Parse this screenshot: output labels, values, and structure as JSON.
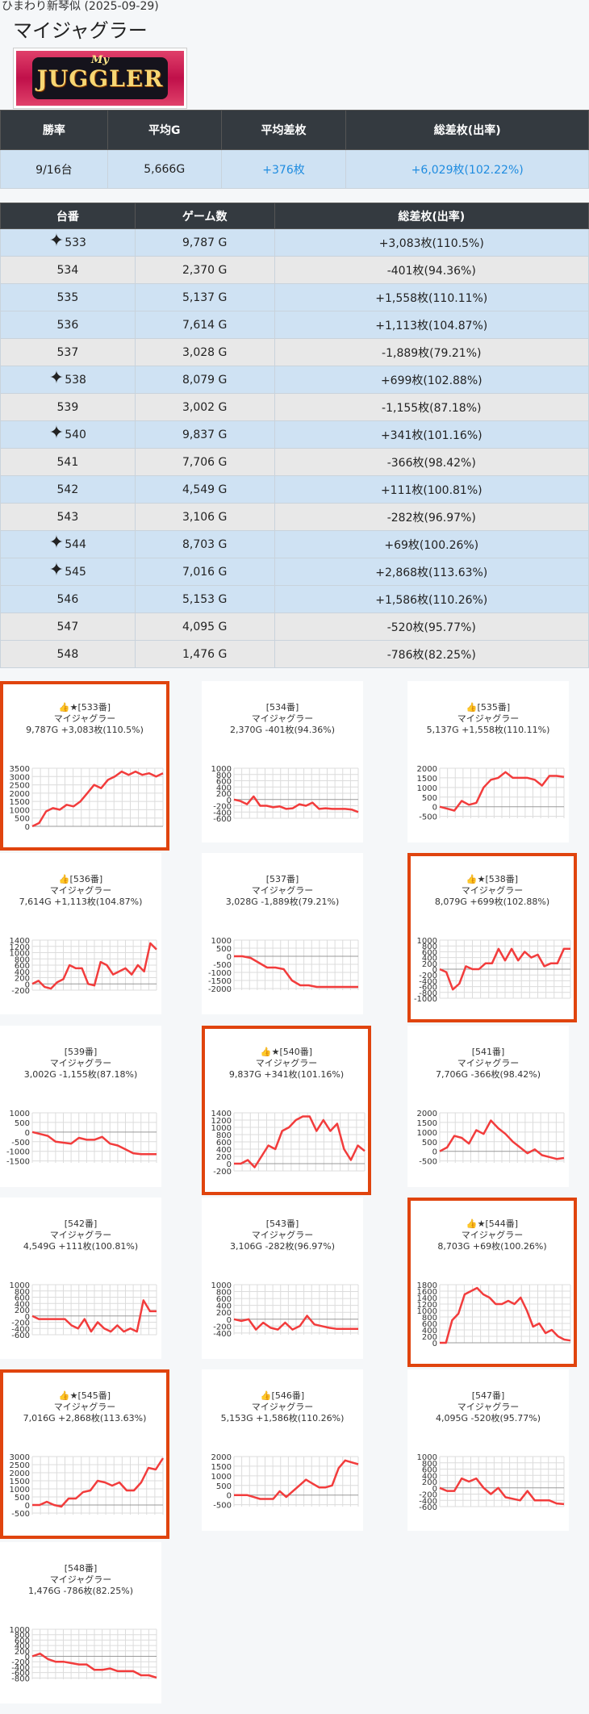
{
  "header": {
    "store_line": "ひまわり新琴似 (2025-09-29)",
    "machine": "マイジャグラー"
  },
  "logo": {
    "my": "My",
    "name": "JUGGLER"
  },
  "summary": {
    "headers": [
      "勝率",
      "平均G",
      "平均差枚",
      "総差枚(出率)"
    ],
    "win_rate": "9/16台",
    "avg_games": "5,666G",
    "avg_diff": "+376枚",
    "total_diff": "+6,029枚(102.22%)"
  },
  "detail": {
    "headers": [
      "台番",
      "ゲーム数",
      "総差枚(出率)"
    ],
    "sparkle_icon": "✦",
    "rows": [
      {
        "no": "533",
        "games": "9,787 G",
        "diff": "+3,083枚(110.5%)",
        "star": true,
        "style": "blue"
      },
      {
        "no": "534",
        "games": "2,370 G",
        "diff": "-401枚(94.36%)",
        "star": false,
        "style": "grey"
      },
      {
        "no": "535",
        "games": "5,137 G",
        "diff": "+1,558枚(110.11%)",
        "star": false,
        "style": "blue"
      },
      {
        "no": "536",
        "games": "7,614 G",
        "diff": "+1,113枚(104.87%)",
        "star": false,
        "style": "blue"
      },
      {
        "no": "537",
        "games": "3,028 G",
        "diff": "-1,889枚(79.21%)",
        "star": false,
        "style": "grey"
      },
      {
        "no": "538",
        "games": "8,079 G",
        "diff": "+699枚(102.88%)",
        "star": true,
        "style": "blue"
      },
      {
        "no": "539",
        "games": "3,002 G",
        "diff": "-1,155枚(87.18%)",
        "star": false,
        "style": "grey"
      },
      {
        "no": "540",
        "games": "9,837 G",
        "diff": "+341枚(101.16%)",
        "star": true,
        "style": "blue"
      },
      {
        "no": "541",
        "games": "7,706 G",
        "diff": "-366枚(98.42%)",
        "star": false,
        "style": "grey"
      },
      {
        "no": "542",
        "games": "4,549 G",
        "diff": "+111枚(100.81%)",
        "star": false,
        "style": "blue"
      },
      {
        "no": "543",
        "games": "3,106 G",
        "diff": "-282枚(96.97%)",
        "star": false,
        "style": "grey"
      },
      {
        "no": "544",
        "games": "8,703 G",
        "diff": "+69枚(100.26%)",
        "star": true,
        "style": "blue"
      },
      {
        "no": "545",
        "games": "7,016 G",
        "diff": "+2,868枚(113.63%)",
        "star": true,
        "style": "blue"
      },
      {
        "no": "546",
        "games": "5,153 G",
        "diff": "+1,586枚(110.26%)",
        "star": false,
        "style": "blue"
      },
      {
        "no": "547",
        "games": "4,095 G",
        "diff": "-520枚(95.77%)",
        "star": false,
        "style": "grey"
      },
      {
        "no": "548",
        "games": "1,476 G",
        "diff": "-786枚(82.25%)",
        "star": false,
        "style": "grey"
      }
    ]
  },
  "chart_data": [
    {
      "type": "line",
      "title": "👍★[533番]",
      "subtitle": "マイジャグラー",
      "caption": "9,787G +3,083枚(110.5%)",
      "highlight": true,
      "yticks": [
        3500,
        3000,
        2500,
        2000,
        1500,
        1000,
        500,
        0
      ],
      "ylim": [
        0,
        3500
      ],
      "values": [
        0,
        200,
        900,
        1100,
        1000,
        1300,
        1200,
        1500,
        2000,
        2500,
        2300,
        2800,
        3000,
        3300,
        3100,
        3300,
        3100,
        3200,
        3000,
        3200
      ]
    },
    {
      "type": "line",
      "title": "[534番]",
      "subtitle": "マイジャグラー",
      "caption": "2,370G -401枚(94.36%)",
      "highlight": false,
      "yticks": [
        1000,
        800,
        600,
        400,
        200,
        0,
        -200,
        -400,
        -600
      ],
      "ylim": [
        -600,
        1000
      ],
      "values": [
        0,
        -50,
        -150,
        100,
        -200,
        -200,
        -250,
        -220,
        -300,
        -280,
        -150,
        -200,
        -100,
        -300,
        -280,
        -300,
        -300,
        -300,
        -320,
        -400
      ]
    },
    {
      "type": "line",
      "title": "👍[535番]",
      "subtitle": "マイジャグラー",
      "caption": "5,137G +1,558枚(110.11%)",
      "highlight": false,
      "yticks": [
        2000,
        1500,
        1000,
        500,
        0,
        -500
      ],
      "ylim": [
        -600,
        2000
      ],
      "values": [
        0,
        -100,
        -200,
        300,
        100,
        200,
        1000,
        1400,
        1500,
        1800,
        1500,
        1500,
        1500,
        1400,
        1100,
        1600,
        1600,
        1550
      ]
    },
    {
      "type": "line",
      "title": "👍[536番]",
      "subtitle": "マイジャグラー",
      "caption": "7,614G +1,113枚(104.87%)",
      "highlight": false,
      "yticks": [
        1400,
        1200,
        1000,
        800,
        600,
        400,
        200,
        0,
        -200
      ],
      "ylim": [
        -200,
        1400
      ],
      "values": [
        0,
        100,
        -100,
        -150,
        50,
        150,
        600,
        500,
        500,
        0,
        -50,
        700,
        600,
        300,
        400,
        500,
        300,
        600,
        400,
        1300,
        1100
      ]
    },
    {
      "type": "line",
      "title": "[537番]",
      "subtitle": "マイジャグラー",
      "caption": "3,028G -1,889枚(79.21%)",
      "highlight": false,
      "yticks": [
        1000,
        500,
        0,
        -500,
        -1000,
        -1500,
        -2000
      ],
      "ylim": [
        -2100,
        1000
      ],
      "values": [
        0,
        0,
        -100,
        -400,
        -700,
        -700,
        -800,
        -1500,
        -1800,
        -1800,
        -1900,
        -1900,
        -1900,
        -1900,
        -1900,
        -1900
      ]
    },
    {
      "type": "line",
      "title": "👍★[538番]",
      "subtitle": "マイジャグラー",
      "caption": "8,079G +699枚(102.88%)",
      "highlight": true,
      "yticks": [
        1000,
        800,
        600,
        400,
        200,
        0,
        -200,
        -400,
        -600,
        -800,
        -1000
      ],
      "ylim": [
        -1000,
        1000
      ],
      "values": [
        0,
        -100,
        -700,
        -500,
        100,
        0,
        0,
        200,
        200,
        700,
        300,
        700,
        300,
        600,
        400,
        500,
        100,
        200,
        200,
        700,
        700
      ]
    },
    {
      "type": "line",
      "title": "[539番]",
      "subtitle": "マイジャグラー",
      "caption": "3,002G -1,155枚(87.18%)",
      "highlight": false,
      "yticks": [
        1000,
        500,
        0,
        -500,
        -1000,
        -1500
      ],
      "ylim": [
        -1600,
        1000
      ],
      "values": [
        0,
        -100,
        -200,
        -500,
        -550,
        -600,
        -300,
        -400,
        -400,
        -250,
        -600,
        -700,
        -900,
        -1100,
        -1150,
        -1150,
        -1150
      ]
    },
    {
      "type": "line",
      "title": "👍★[540番]",
      "subtitle": "マイジャグラー",
      "caption": "9,837G +341枚(101.16%)",
      "highlight": true,
      "yticks": [
        1400,
        1200,
        1000,
        800,
        600,
        400,
        200,
        0,
        -200
      ],
      "ylim": [
        -200,
        1400
      ],
      "values": [
        0,
        0,
        100,
        -100,
        200,
        500,
        400,
        900,
        1000,
        1200,
        1300,
        1300,
        900,
        1200,
        900,
        1100,
        400,
        100,
        500,
        350
      ]
    },
    {
      "type": "line",
      "title": "[541番]",
      "subtitle": "マイジャグラー",
      "caption": "7,706G -366枚(98.42%)",
      "highlight": false,
      "yticks": [
        2000,
        1500,
        1000,
        500,
        0,
        -500
      ],
      "ylim": [
        -600,
        2000
      ],
      "values": [
        0,
        200,
        800,
        700,
        400,
        1100,
        900,
        1600,
        1200,
        900,
        500,
        200,
        -100,
        100,
        -200,
        -300,
        -400,
        -350
      ]
    },
    {
      "type": "line",
      "title": "[542番]",
      "subtitle": "マイジャグラー",
      "caption": "4,549G +111枚(100.81%)",
      "highlight": false,
      "yticks": [
        1000,
        800,
        600,
        400,
        200,
        0,
        -200,
        -400,
        -600
      ],
      "ylim": [
        -600,
        1000
      ],
      "values": [
        0,
        -100,
        -100,
        -100,
        -100,
        -100,
        -300,
        -400,
        -100,
        -500,
        -200,
        -400,
        -500,
        -300,
        -500,
        -400,
        -500,
        500,
        150,
        150
      ]
    },
    {
      "type": "line",
      "title": "[543番]",
      "subtitle": "マイジャグラー",
      "caption": "3,106G -282枚(96.97%)",
      "highlight": false,
      "yticks": [
        1000,
        800,
        600,
        400,
        200,
        0,
        -200,
        -400
      ],
      "ylim": [
        -450,
        1000
      ],
      "values": [
        0,
        -50,
        0,
        -300,
        -100,
        -250,
        -300,
        -100,
        -300,
        -200,
        100,
        -150,
        -200,
        -250,
        -280,
        -280,
        -280,
        -280
      ]
    },
    {
      "type": "line",
      "title": "👍★[544番]",
      "subtitle": "マイジャグラー",
      "caption": "8,703G +69枚(100.26%)",
      "highlight": true,
      "yticks": [
        1800,
        1600,
        1400,
        1200,
        1000,
        800,
        600,
        400,
        200,
        0
      ],
      "ylim": [
        0,
        1800
      ],
      "values": [
        0,
        0,
        700,
        900,
        1500,
        1600,
        1700,
        1500,
        1400,
        1200,
        1200,
        1300,
        1200,
        1400,
        1000,
        500,
        600,
        300,
        400,
        200,
        100,
        69
      ]
    },
    {
      "type": "line",
      "title": "👍★[545番]",
      "subtitle": "マイジャグラー",
      "caption": "7,016G +2,868枚(113.63%)",
      "highlight": true,
      "yticks": [
        3000,
        2500,
        2000,
        1500,
        1000,
        500,
        0,
        -500
      ],
      "ylim": [
        -600,
        3000
      ],
      "values": [
        0,
        0,
        200,
        0,
        -100,
        400,
        400,
        800,
        900,
        1500,
        1400,
        1200,
        1400,
        900,
        900,
        1400,
        2300,
        2200,
        2900
      ]
    },
    {
      "type": "line",
      "title": "👍[546番]",
      "subtitle": "マイジャグラー",
      "caption": "5,153G +1,586枚(110.26%)",
      "highlight": false,
      "yticks": [
        2000,
        1500,
        1000,
        500,
        0,
        -500
      ],
      "ylim": [
        -600,
        2000
      ],
      "values": [
        0,
        0,
        0,
        -100,
        -200,
        -200,
        -200,
        200,
        -100,
        200,
        500,
        800,
        600,
        400,
        400,
        500,
        1400,
        1800,
        1700,
        1600
      ]
    },
    {
      "type": "line",
      "title": "[547番]",
      "subtitle": "マイジャグラー",
      "caption": "4,095G -520枚(95.77%)",
      "highlight": false,
      "yticks": [
        1000,
        800,
        600,
        400,
        200,
        0,
        -200,
        -400,
        -600
      ],
      "ylim": [
        -600,
        1000
      ],
      "values": [
        0,
        -100,
        -100,
        300,
        200,
        300,
        0,
        -200,
        0,
        -300,
        -350,
        -400,
        -100,
        -400,
        -400,
        -400,
        -500,
        -520
      ]
    },
    {
      "type": "line",
      "title": "[548番]",
      "subtitle": "マイジャグラー",
      "caption": "1,476G -786枚(82.25%)",
      "highlight": false,
      "yticks": [
        1000,
        800,
        600,
        400,
        200,
        0,
        -200,
        -400,
        -600,
        -800
      ],
      "ylim": [
        -850,
        1000
      ],
      "values": [
        0,
        100,
        -100,
        -200,
        -200,
        -250,
        -300,
        -300,
        -500,
        -500,
        -450,
        -550,
        -550,
        -550,
        -700,
        -700,
        -786
      ]
    }
  ]
}
